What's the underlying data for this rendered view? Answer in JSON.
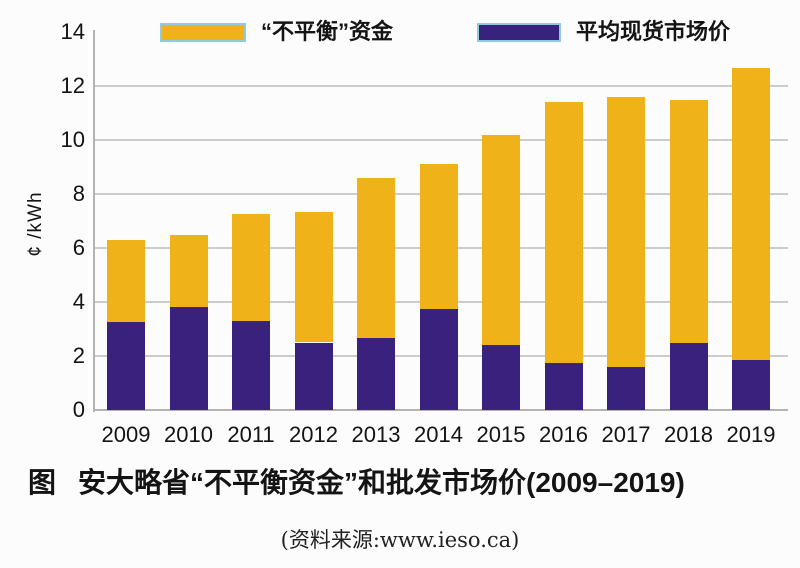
{
  "figure": {
    "caption_prefix": "图",
    "caption_title": "安大略省“不平衡资金”和批发市场价(2009–2019)",
    "source": "(资料来源:www.ieso.ca)"
  },
  "legend": {
    "items": [
      {
        "label": "“不平衡”资金",
        "color": "#efb319"
      },
      {
        "label": "平均现货市场价",
        "color": "#39227d"
      }
    ]
  },
  "colors": {
    "imbalance_yellow": "#efb319",
    "spot_purple": "#39227d",
    "legend_swatch_border": "#8fcbdc",
    "gridline": "#cccccc",
    "axis": "#b3b3b3",
    "text": "#141414"
  },
  "chart_data": {
    "type": "bar",
    "stacked": true,
    "title": "安大略省“不平衡资金”和批发市场价(2009–2019)",
    "categories": [
      "2009",
      "2010",
      "2011",
      "2012",
      "2013",
      "2014",
      "2015",
      "2016",
      "2017",
      "2018",
      "2019"
    ],
    "series": [
      {
        "name": "平均现货市场价",
        "color": "#39227d",
        "values": [
          3.25,
          3.8,
          3.3,
          2.5,
          2.65,
          3.75,
          2.4,
          1.75,
          1.6,
          2.5,
          1.85
        ]
      },
      {
        "name": "“不平衡”资金",
        "color": "#efb319",
        "values": [
          3.05,
          2.7,
          3.95,
          4.85,
          5.95,
          5.35,
          7.8,
          9.65,
          10.0,
          9.0,
          10.8
        ]
      }
    ],
    "stack_totals": [
      6.3,
      6.5,
      7.25,
      7.35,
      8.6,
      9.1,
      10.2,
      11.4,
      11.6,
      11.5,
      12.65
    ],
    "xlabel": "",
    "ylabel": "¢ /kWh",
    "ylim": [
      0,
      14
    ],
    "ytick_step": 2,
    "grid": true,
    "legend_position": "top",
    "source": "www.ieso.ca"
  }
}
